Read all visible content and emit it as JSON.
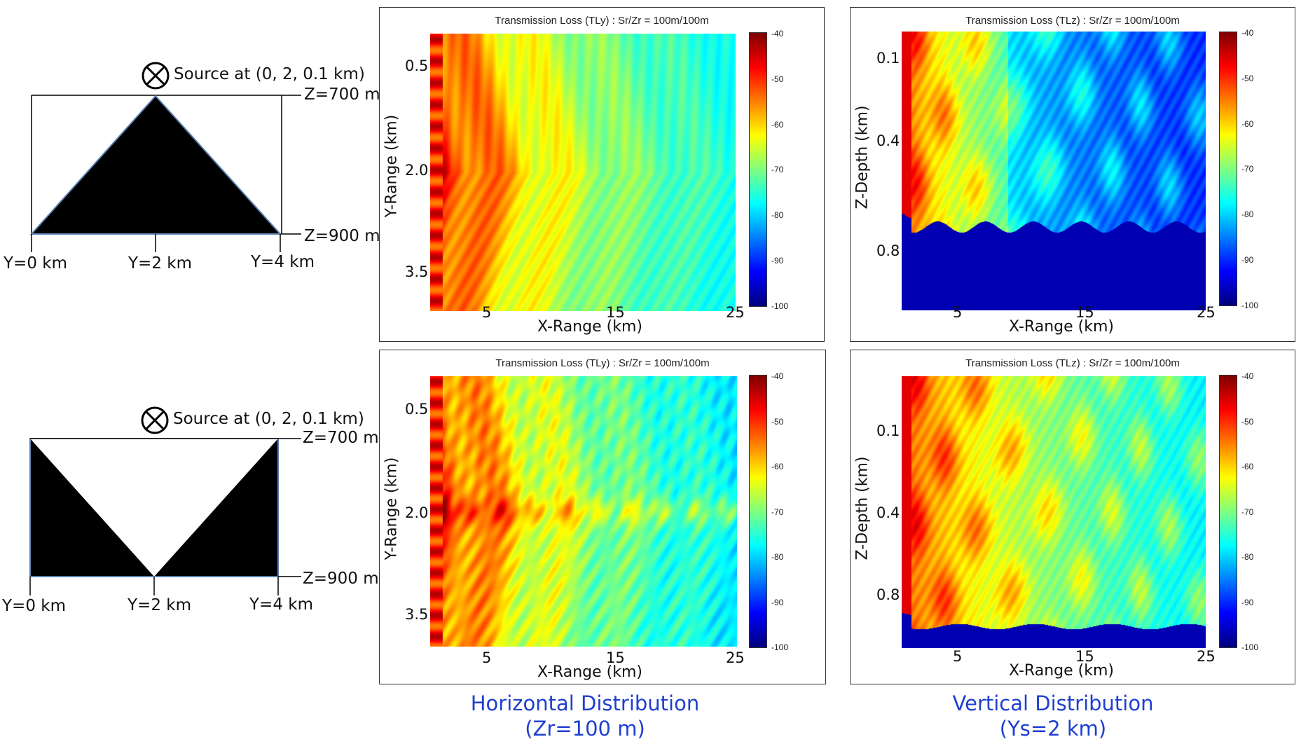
{
  "diagrams": [
    {
      "source_label": "Source at (0, 2, 0.1 km)",
      "z_top": "Z=700 m",
      "z_bottom": "Z=900 m",
      "y_labels": [
        "Y=0 km",
        "Y=2 km",
        "Y=4 km"
      ],
      "shape": "triangle-up"
    },
    {
      "source_label": "Source at (0, 2, 0.1 km)",
      "z_top": "Z=700 m",
      "z_bottom": "Z=900 m",
      "y_labels": [
        "Y=0 km",
        "Y=2 km",
        "Y=4 km"
      ],
      "shape": "v-notch"
    }
  ],
  "plots": [
    {
      "id": "tly-top",
      "title": "Transmission Loss (TLy) : Sr/Zr = 100m/100m",
      "xlabel": "X-Range (km)",
      "ylabel": "Y-Range (km)",
      "xticks": [
        "5",
        "15",
        "25"
      ],
      "yticks": [
        "0.5",
        "2.0",
        "3.5"
      ],
      "colorbar": [
        "-40",
        "-50",
        "-60",
        "-70",
        "-80",
        "-90",
        "-100"
      ],
      "kind": "horizontal",
      "variant": 1
    },
    {
      "id": "tlz-top",
      "title": "Transmission Loss (TLz) : Sr/Zr = 100m/100m",
      "xlabel": "X-Range (km)",
      "ylabel": "Z-Depth (km)",
      "xticks": [
        "5",
        "15",
        "25"
      ],
      "yticks": [
        "0.1",
        "0.4",
        "0.8"
      ],
      "colorbar": [
        "-40",
        "-50",
        "-60",
        "-70",
        "-80",
        "-90",
        "-100"
      ],
      "kind": "vertical",
      "variant": 1
    },
    {
      "id": "tly-bottom",
      "title": "Transmission Loss (TLy) : Sr/Zr = 100m/100m",
      "xlabel": "X-Range (km)",
      "ylabel": "Y-Range (km)",
      "xticks": [
        "5",
        "15",
        "25"
      ],
      "yticks": [
        "0.5",
        "2.0",
        "3.5"
      ],
      "colorbar": [
        "-40",
        "-50",
        "-60",
        "-70",
        "-80",
        "-90",
        "-100"
      ],
      "kind": "horizontal",
      "variant": 2
    },
    {
      "id": "tlz-bottom",
      "title": "Transmission Loss (TLz) : Sr/Zr = 100m/100m",
      "xlabel": "X-Range (km)",
      "ylabel": "Z-Depth (km)",
      "xticks": [
        "5",
        "15",
        "25"
      ],
      "yticks": [
        "0.1",
        "0.4",
        "0.8"
      ],
      "colorbar": [
        "-40",
        "-50",
        "-60",
        "-70",
        "-80",
        "-90",
        "-100"
      ],
      "kind": "vertical",
      "variant": 2
    }
  ],
  "captions": {
    "horizontal_line1": "Horizontal Distribution",
    "horizontal_line2": "(Zr=100 m)",
    "vertical_line1": "Vertical Distribution",
    "vertical_line2": "(Ys=2 km)"
  },
  "colors": {
    "caption": "#1f3fd0",
    "colormap": "jet"
  }
}
